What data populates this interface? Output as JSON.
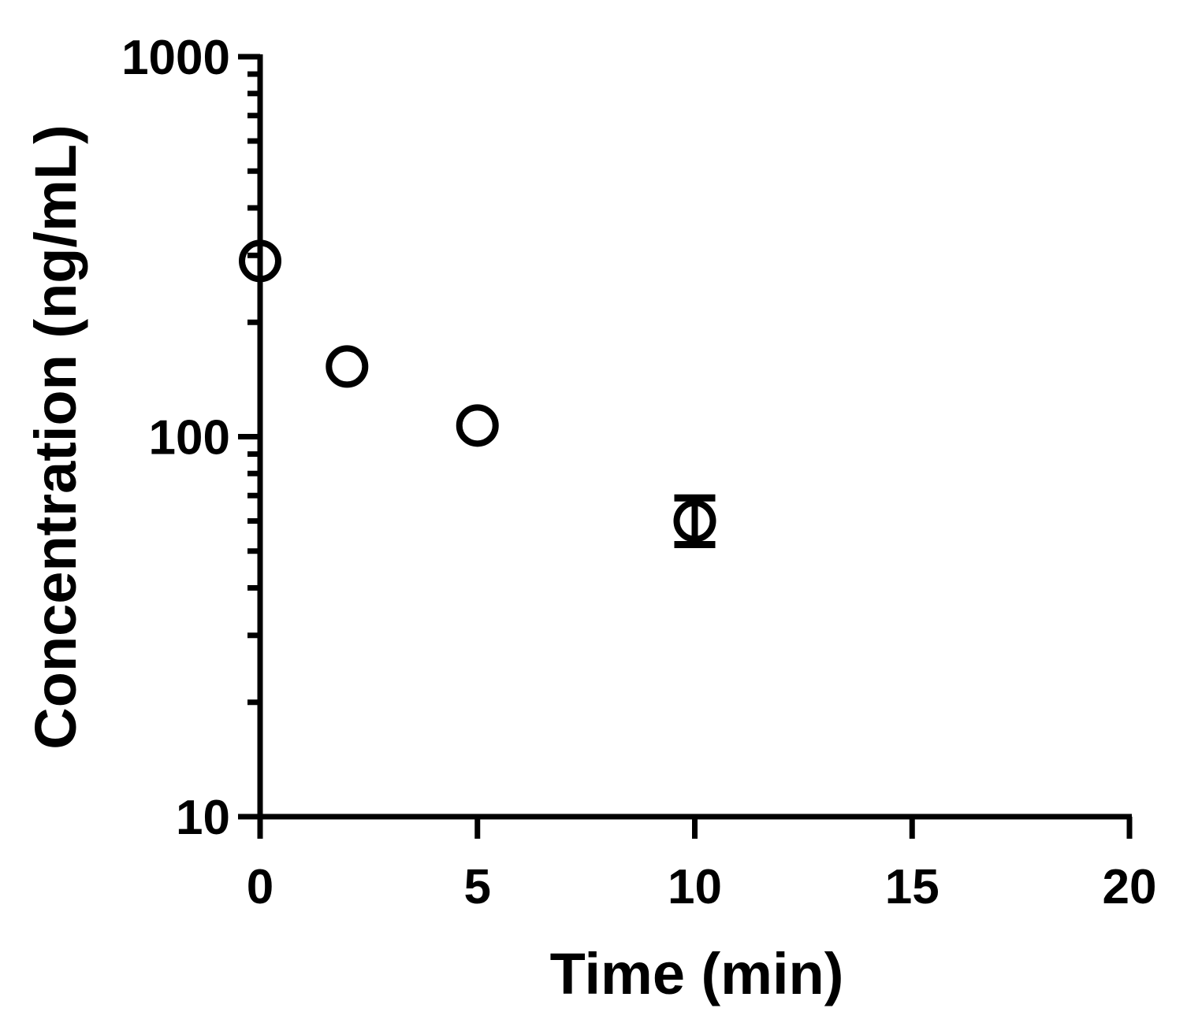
{
  "chart_data": {
    "type": "scatter",
    "xlabel": "Time (min)",
    "ylabel": "Concentration (ng/mL)",
    "xlim": [
      0,
      20
    ],
    "ylim": [
      10,
      1000
    ],
    "y_scale": "log",
    "x_ticks": [
      0,
      5,
      10,
      15,
      20
    ],
    "x_tick_labels": [
      "0",
      "5",
      "10",
      "15",
      "20"
    ],
    "y_ticks": [
      10,
      100,
      1000
    ],
    "y_tick_labels": [
      "10",
      "100",
      "1000"
    ],
    "grid": false,
    "legend": "none",
    "marker": "open-circle",
    "colors": {
      "marks": "#000000",
      "background": "#ffffff"
    },
    "points": [
      {
        "x": 0,
        "y": 290
      },
      {
        "x": 2,
        "y": 153
      },
      {
        "x": 5,
        "y": 107
      },
      {
        "x": 10,
        "y": 60,
        "y_err_low": 52,
        "y_err_high": 69
      }
    ]
  }
}
